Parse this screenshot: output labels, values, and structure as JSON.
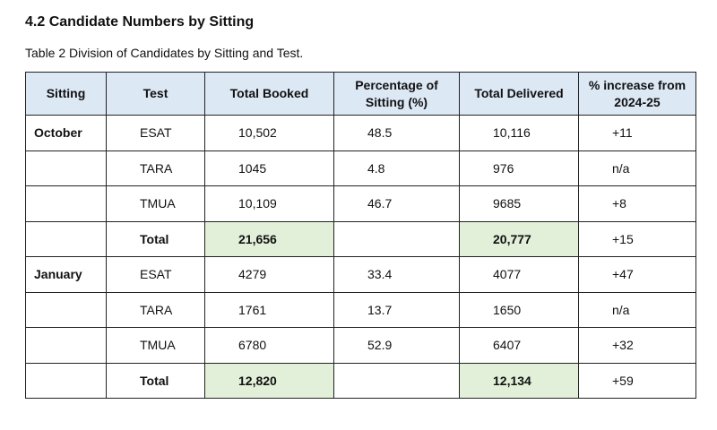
{
  "heading": "4.2 Candidate Numbers by Sitting",
  "caption": "Table 2 Division of Candidates by Sitting and Test.",
  "table": {
    "header": [
      "Sitting",
      "Test",
      "Total Booked",
      "Percentage of Sitting (%)",
      "Total Delivered",
      "% increase from 2024-25"
    ],
    "rows": [
      [
        "October",
        "ESAT",
        "10,502",
        "48.5",
        "10,116",
        "+11"
      ],
      [
        null,
        "TARA",
        "1045",
        "4.8",
        "976",
        "n/a"
      ],
      [
        null,
        "TMUA",
        "10,109",
        "46.7",
        "9685",
        "+8"
      ],
      [
        null,
        "Total",
        "21,656",
        null,
        "20,777",
        "+15"
      ],
      [
        "January",
        "ESAT",
        "4279",
        "33.4",
        "4077",
        "+47"
      ],
      [
        null,
        "TARA",
        "1761",
        "13.7",
        "1650",
        "n/a"
      ],
      [
        null,
        "TMUA",
        "6780",
        "52.9",
        "6407",
        "+32"
      ],
      [
        null,
        "Total",
        "12,820",
        null,
        "12,134",
        "+59"
      ]
    ]
  }
}
